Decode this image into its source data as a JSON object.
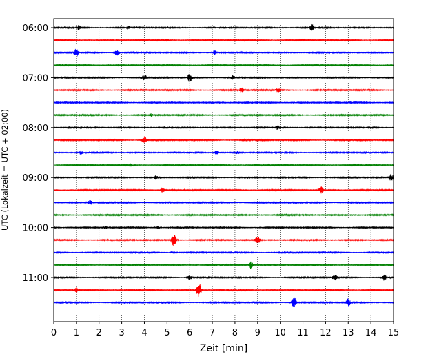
{
  "chart_data": {
    "type": "line",
    "title": "",
    "xlabel": "Zeit  [min]",
    "ylabel": "UTC (Lokalzeit = UTC + 02:00)",
    "xlim": [
      0,
      15
    ],
    "x_ticks": [
      "0",
      "1",
      "2",
      "3",
      "4",
      "5",
      "6",
      "7",
      "8",
      "9",
      "10",
      "11",
      "12",
      "13",
      "14",
      "15"
    ],
    "y_tick_labels": [
      "06:00",
      "07:00",
      "08:00",
      "09:00",
      "10:00",
      "11:00"
    ],
    "grid": {
      "vertical": "dotted",
      "horizontal": false
    },
    "trace_interval_min": 15,
    "trace_colors": [
      "#000000",
      "#ff0000",
      "#0000ff",
      "#008000"
    ],
    "traces": [
      {
        "start": "06:00",
        "events": [
          [
            1.1,
            0.9
          ],
          [
            3.3,
            0.8
          ],
          [
            11.4,
            1.4
          ]
        ]
      },
      {
        "start": "06:15",
        "events": [
          [
            5.0,
            0.5
          ]
        ]
      },
      {
        "start": "06:30",
        "events": [
          [
            1.0,
            1.8
          ],
          [
            2.8,
            1.5
          ],
          [
            7.1,
            1.0
          ]
        ]
      },
      {
        "start": "06:45",
        "events": []
      },
      {
        "start": "07:00",
        "events": [
          [
            4.0,
            1.2
          ],
          [
            6.0,
            2.0
          ],
          [
            7.9,
            1.0
          ]
        ]
      },
      {
        "start": "07:15",
        "events": [
          [
            8.3,
            1.0
          ],
          [
            9.9,
            0.8
          ]
        ]
      },
      {
        "start": "07:30",
        "events": []
      },
      {
        "start": "07:45",
        "events": [
          [
            4.3,
            0.5
          ]
        ]
      },
      {
        "start": "08:00",
        "events": [
          [
            9.9,
            0.9
          ]
        ]
      },
      {
        "start": "08:15",
        "events": [
          [
            4.0,
            1.6
          ],
          [
            8.4,
            0.5
          ]
        ]
      },
      {
        "start": "08:30",
        "events": [
          [
            1.2,
            0.8
          ],
          [
            7.2,
            1.0
          ],
          [
            8.1,
            0.6
          ]
        ]
      },
      {
        "start": "08:45",
        "events": [
          [
            3.4,
            0.6
          ]
        ]
      },
      {
        "start": "09:00",
        "events": [
          [
            4.5,
            0.8
          ],
          [
            14.9,
            1.4
          ]
        ]
      },
      {
        "start": "09:15",
        "events": [
          [
            4.8,
            1.1
          ],
          [
            11.8,
            1.6
          ]
        ]
      },
      {
        "start": "09:30",
        "events": [
          [
            1.6,
            1.0
          ]
        ]
      },
      {
        "start": "09:45",
        "events": []
      },
      {
        "start": "10:00",
        "events": [
          [
            2.3,
            0.6
          ],
          [
            4.6,
            0.6
          ]
        ]
      },
      {
        "start": "10:15",
        "events": [
          [
            5.3,
            2.8
          ],
          [
            9.0,
            1.8
          ]
        ]
      },
      {
        "start": "10:30",
        "events": [
          [
            5.3,
            0.6
          ]
        ]
      },
      {
        "start": "10:45",
        "events": [
          [
            8.7,
            1.6
          ]
        ]
      },
      {
        "start": "11:00",
        "events": [
          [
            6.0,
            0.9
          ],
          [
            12.4,
            1.4
          ],
          [
            14.6,
            1.3
          ]
        ]
      },
      {
        "start": "11:15",
        "events": [
          [
            6.4,
            3.5
          ],
          [
            1.0,
            1.0
          ]
        ]
      },
      {
        "start": "11:30",
        "events": [
          [
            10.6,
            2.5
          ],
          [
            13.0,
            1.6
          ]
        ]
      }
    ]
  }
}
